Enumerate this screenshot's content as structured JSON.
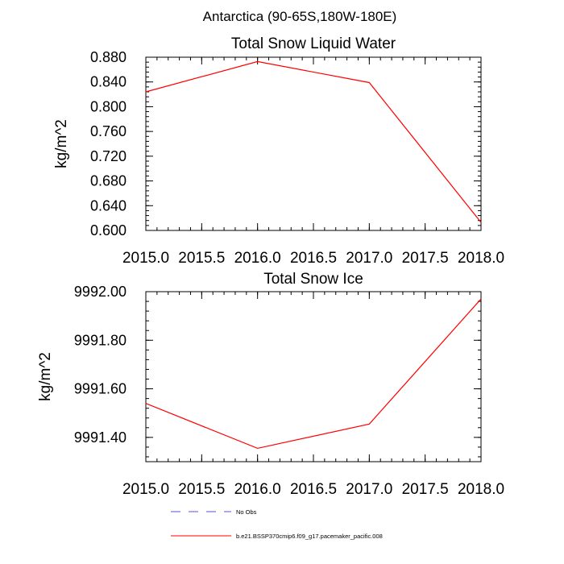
{
  "figure": {
    "title": "Antarctica (90-65S,180W-180E)"
  },
  "chart_data": [
    {
      "type": "line",
      "title": "Total Snow Liquid Water",
      "xlabel": "",
      "ylabel": "kg/m^2",
      "xlim": [
        2015.0,
        2018.0
      ],
      "ylim": [
        0.6,
        0.88
      ],
      "xticks": [
        "2015.0",
        "2015.5",
        "2016.0",
        "2016.5",
        "2017.0",
        "2017.5",
        "2018.0"
      ],
      "xtick_values": [
        2015.0,
        2015.5,
        2016.0,
        2016.5,
        2017.0,
        2017.5,
        2018.0
      ],
      "yticks": [
        "0.600",
        "0.640",
        "0.680",
        "0.720",
        "0.760",
        "0.800",
        "0.840",
        "0.880"
      ],
      "ytick_values": [
        0.6,
        0.64,
        0.68,
        0.72,
        0.76,
        0.8,
        0.84,
        0.88
      ],
      "yminor_step": 0.008,
      "xminor_step": 0.1,
      "grid": false,
      "series": [
        {
          "name": "b.e21.BSSP370cmip6.f09_g17.pacemaker_pacific.008",
          "color": "#ff0000",
          "x": [
            2015,
            2016,
            2017,
            2018
          ],
          "y": [
            0.824,
            0.873,
            0.839,
            0.613
          ]
        }
      ]
    },
    {
      "type": "line",
      "title": "Total Snow Ice",
      "xlabel": "",
      "ylabel": "kg/m^2",
      "xlim": [
        2015.0,
        2018.0
      ],
      "ylim": [
        9991.3,
        9992.0
      ],
      "xticks": [
        "2015.0",
        "2015.5",
        "2016.0",
        "2016.5",
        "2017.0",
        "2017.5",
        "2018.0"
      ],
      "xtick_values": [
        2015.0,
        2015.5,
        2016.0,
        2016.5,
        2017.0,
        2017.5,
        2018.0
      ],
      "yticks": [
        "9991.40",
        "9991.60",
        "9991.80",
        "9992.00"
      ],
      "ytick_values": [
        9991.4,
        9991.6,
        9991.8,
        9992.0
      ],
      "yminor_step": 0.04,
      "xminor_step": 0.1,
      "grid": false,
      "series": [
        {
          "name": "b.e21.BSSP370cmip6.f09_g17.pacemaker_pacific.008",
          "color": "#ff0000",
          "x": [
            2015,
            2016,
            2017,
            2018
          ],
          "y": [
            9991.54,
            9991.355,
            9991.455,
            9991.97
          ]
        }
      ]
    }
  ],
  "legend": {
    "placement": "bottom",
    "items": [
      {
        "label": "No Obs",
        "color": "#5555cc",
        "style": "dashed"
      },
      {
        "label": "b.e21.BSSP370cmip6.f09_g17.pacemaker_pacific.008",
        "color": "#ff0000",
        "style": "solid"
      }
    ]
  }
}
